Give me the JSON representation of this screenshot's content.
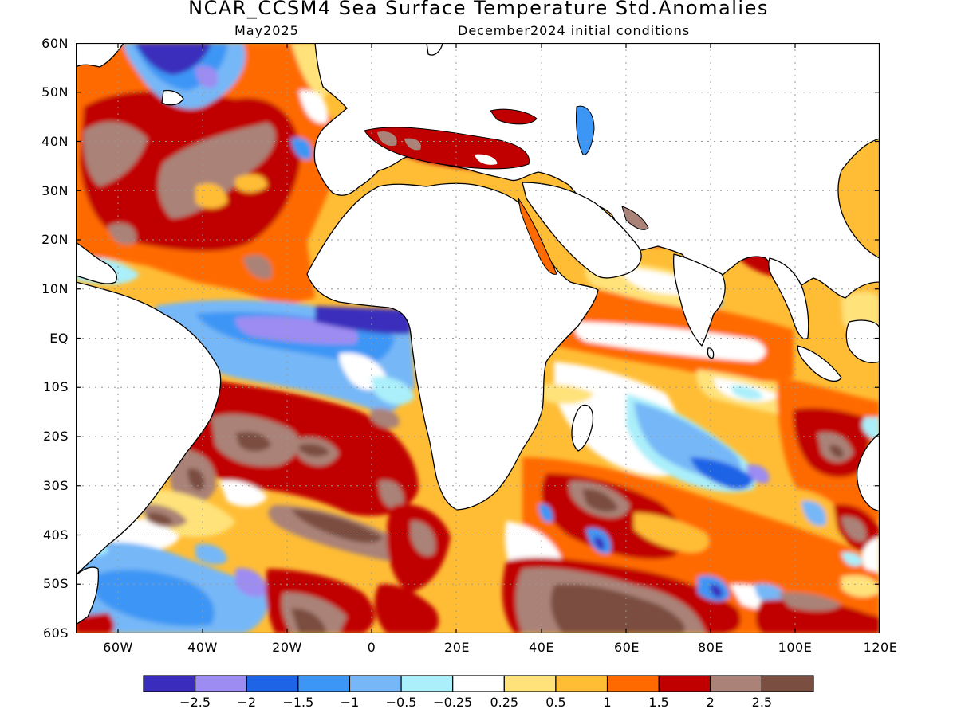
{
  "title": "NCAR_CCSM4 Sea Surface Temperature Std.Anomalies",
  "valid_month": "May2025",
  "initial_conditions": "December2024 initial conditions",
  "lat_labels": [
    "60N",
    "50N",
    "40N",
    "30N",
    "20N",
    "10N",
    "EQ",
    "10S",
    "20S",
    "30S",
    "40S",
    "50S",
    "60S"
  ],
  "lon_labels": [
    "60W",
    "40W",
    "20W",
    "0",
    "20E",
    "40E",
    "60E",
    "80E",
    "100E",
    "120E"
  ],
  "colorbar": {
    "colors": [
      "#3a2dbd",
      "#9d8cf2",
      "#1e64e6",
      "#3c96f5",
      "#76b7f7",
      "#aaeffa",
      "#ffffff",
      "#ffe27a",
      "#ffbd35",
      "#ff6a00",
      "#c00000",
      "#aa8277",
      "#7a4e40"
    ],
    "labels": [
      "-2.5",
      "-2",
      "-1.5",
      "-1",
      "-0.5",
      "-0.25",
      "0.25",
      "0.5",
      "1",
      "1.5",
      "2",
      "2.5"
    ]
  }
}
